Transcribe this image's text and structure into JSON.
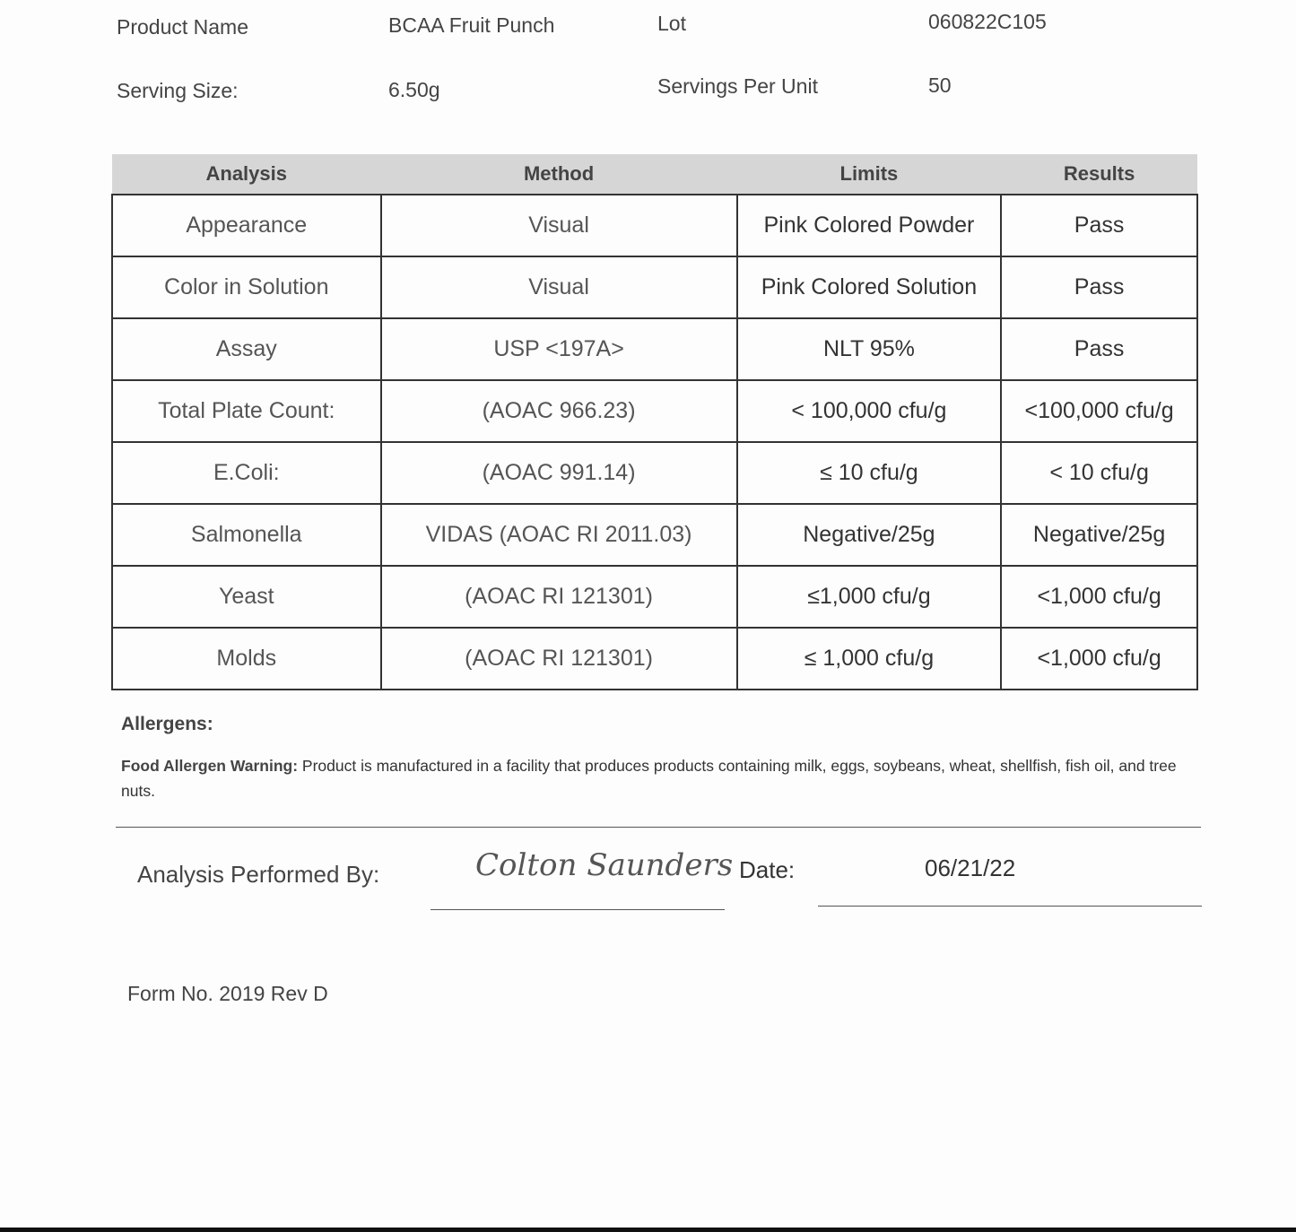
{
  "header": {
    "product_name_label": "Product Name",
    "product_name": "BCAA Fruit Punch",
    "lot_label": "Lot",
    "lot": "060822C105",
    "serving_size_label": "Serving Size:",
    "serving_size": "6.50g",
    "servings_per_unit_label": "Servings Per Unit",
    "servings_per_unit": "50"
  },
  "table": {
    "columns": [
      "Analysis",
      "Method",
      "Limits",
      "Results"
    ],
    "rows": [
      [
        "Appearance",
        "Visual",
        "Pink Colored Powder",
        "Pass"
      ],
      [
        "Color in Solution",
        "Visual",
        "Pink Colored Solution",
        "Pass"
      ],
      [
        "Assay",
        "USP <197A>",
        "NLT 95%",
        "Pass"
      ],
      [
        "Total Plate Count:",
        "(AOAC 966.23)",
        "< 100,000 cfu/g",
        "<100,000 cfu/g"
      ],
      [
        "E.Coli:",
        "(AOAC 991.14)",
        "≤ 10 cfu/g",
        "< 10 cfu/g"
      ],
      [
        "Salmonella",
        "VIDAS (AOAC RI 2011.03)",
        "Negative/25g",
        "Negative/25g"
      ],
      [
        "Yeast",
        "(AOAC RI 121301)",
        "≤1,000 cfu/g",
        "<1,000 cfu/g"
      ],
      [
        "Molds",
        "(AOAC RI 121301)",
        "≤ 1,000 cfu/g",
        "<1,000  cfu/g"
      ]
    ]
  },
  "allergens": {
    "heading": "Allergens:",
    "warning_label": "Food Allergen Warning:",
    "warning_text": " Product is manufactured in a facility that produces products containing milk, eggs, soybeans, wheat, shellfish, fish oil, and tree nuts."
  },
  "signoff": {
    "performed_by_label": "Analysis Performed By:",
    "signature": "Colton Saunders",
    "date_label": "Date:",
    "date": "06/21/22"
  },
  "footer": {
    "form_no": "Form No. 2019 Rev D"
  }
}
